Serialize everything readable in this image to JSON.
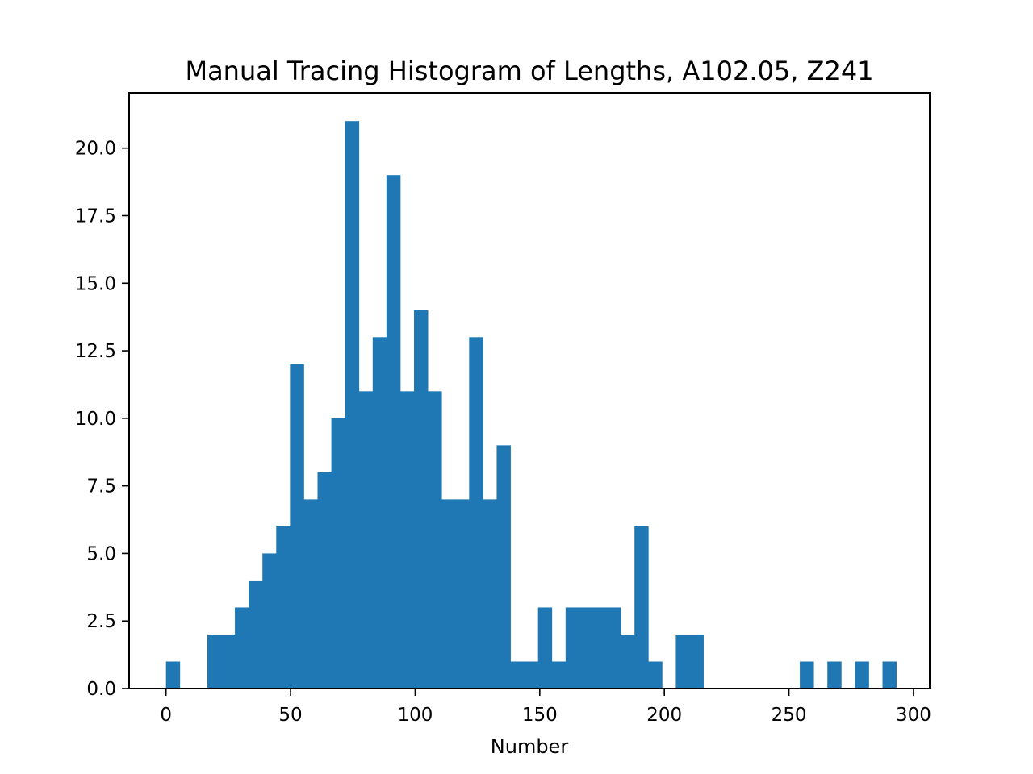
{
  "chart_data": {
    "type": "bar",
    "title": "Manual Tracing Histogram of Lengths, A102.05, Z241",
    "xlabel": "Number",
    "ylabel": "",
    "xlim": [
      -14.8,
      306.5
    ],
    "ylim": [
      0,
      22.05
    ],
    "xticks": [
      0,
      50,
      100,
      150,
      200,
      250,
      300
    ],
    "yticks": [
      0.0,
      2.5,
      5.0,
      7.5,
      10.0,
      12.5,
      15.0,
      17.5,
      20.0
    ],
    "xtick_labels": [
      "0",
      "50",
      "100",
      "150",
      "200",
      "250",
      "300"
    ],
    "ytick_labels": [
      "0.0",
      "2.5",
      "5.0",
      "7.5",
      "10.0",
      "12.5",
      "15.0",
      "17.5",
      "20.0"
    ],
    "bin_start": 0,
    "bin_width": 5.53,
    "values": [
      1,
      0,
      0,
      2,
      2,
      3,
      4,
      5,
      6,
      12,
      7,
      8,
      10,
      21,
      11,
      13,
      19,
      11,
      14,
      11,
      7,
      7,
      13,
      7,
      9,
      1,
      1,
      3,
      1,
      3,
      3,
      3,
      3,
      2,
      6,
      1,
      0,
      2,
      2,
      0,
      0,
      0,
      0,
      0,
      0,
      0,
      1,
      0,
      1,
      0,
      1,
      0,
      1
    ],
    "grid": false,
    "color": "#1f77b4"
  }
}
